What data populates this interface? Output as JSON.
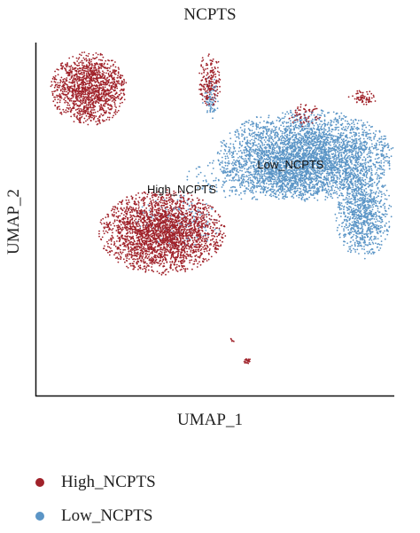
{
  "chart_data": {
    "type": "scatter",
    "title": "NCPTS",
    "xlabel": "UMAP_1",
    "ylabel": "UMAP_2",
    "grid": false,
    "legend_position": "bottom-left",
    "axis_ticks": "none",
    "series": [
      {
        "name": "High_NCPTS",
        "color": "#a0222a",
        "clusters": [
          {
            "cx": 100,
            "cy": 100,
            "rx": 43,
            "ry": 42,
            "n": 1400
          },
          {
            "cx": 237,
            "cy": 90,
            "rx": 13,
            "ry": 33,
            "n": 180
          },
          {
            "cx": 183,
            "cy": 262,
            "rx": 72,
            "ry": 48,
            "n": 2600
          },
          {
            "cx": 345,
            "cy": 130,
            "rx": 20,
            "ry": 14,
            "n": 60
          },
          {
            "cx": 410,
            "cy": 110,
            "rx": 18,
            "ry": 8,
            "n": 70
          },
          {
            "cx": 279,
            "cy": 407,
            "rx": 4,
            "ry": 4,
            "n": 20
          },
          {
            "cx": 262,
            "cy": 384,
            "rx": 3,
            "ry": 3,
            "n": 6
          }
        ]
      },
      {
        "name": "Low_NCPTS",
        "color": "#5b95c6",
        "clusters": [
          {
            "cx": 345,
            "cy": 175,
            "rx": 100,
            "ry": 52,
            "n": 3600
          },
          {
            "cx": 410,
            "cy": 240,
            "rx": 32,
            "ry": 52,
            "n": 900
          },
          {
            "cx": 310,
            "cy": 200,
            "rx": 100,
            "ry": 28,
            "n": 600
          },
          {
            "cx": 238,
            "cy": 110,
            "rx": 10,
            "ry": 24,
            "n": 90
          },
          {
            "cx": 200,
            "cy": 250,
            "rx": 50,
            "ry": 30,
            "n": 200
          }
        ]
      }
    ],
    "annotations": [
      {
        "text": "High_NCPTS",
        "x": 205,
        "y": 218
      },
      {
        "text": "Low_NCPTS",
        "x": 328,
        "y": 190
      }
    ]
  },
  "legend": {
    "items": [
      {
        "label": "High_NCPTS",
        "color": "#a0222a"
      },
      {
        "label": "Low_NCPTS",
        "color": "#5b95c6"
      }
    ]
  }
}
